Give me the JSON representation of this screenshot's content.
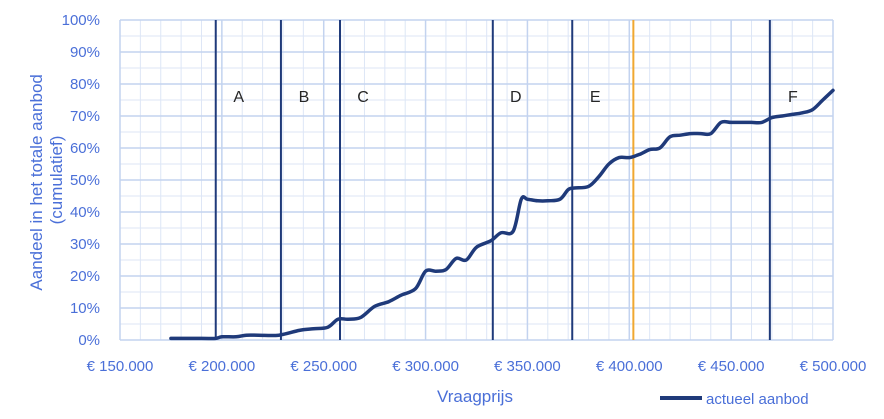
{
  "chart_data": {
    "type": "line",
    "title": "",
    "xlabel": "Vraagprijs",
    "ylabel": "Aandeel in het totale aanbod (cumulatief)",
    "ylabel_lines": [
      "Aandeel in het totale aanbod",
      "(cumulatief)"
    ],
    "xlim": [
      150000,
      500000
    ],
    "ylim": [
      0,
      100
    ],
    "x_ticks": [
      150000,
      200000,
      250000,
      300000,
      350000,
      400000,
      450000,
      500000
    ],
    "x_tick_labels": [
      "€ 150.000",
      "€ 200.000",
      "€ 250.000",
      "€ 300.000",
      "€ 350.000",
      "€ 400.000",
      "€ 450.000",
      "€ 500.000"
    ],
    "y_ticks": [
      0,
      10,
      20,
      30,
      40,
      50,
      60,
      70,
      80,
      90,
      100
    ],
    "y_tick_labels": [
      "0%",
      "10%",
      "20%",
      "30%",
      "40%",
      "50%",
      "60%",
      "70%",
      "80%",
      "90%",
      "100%"
    ],
    "grid": true,
    "legend": "bottom-right",
    "series": [
      {
        "name": "actueel aanbod",
        "color": "#1f3a7a",
        "x": [
          175000,
          190000,
          197000,
          200000,
          207000,
          212000,
          218000,
          228000,
          238000,
          245000,
          252000,
          257000,
          262000,
          268000,
          275000,
          282000,
          288000,
          295000,
          300000,
          305000,
          310000,
          315000,
          320000,
          325000,
          332000,
          337000,
          343000,
          347000,
          350000,
          355000,
          360000,
          366000,
          370000,
          373000,
          380000,
          385000,
          390000,
          395000,
          400000,
          405000,
          410000,
          415000,
          420000,
          425000,
          430000,
          435000,
          440000,
          445000,
          450000,
          455000,
          460000,
          465000,
          470000,
          475000,
          480000,
          485000,
          490000,
          495000,
          500000
        ],
        "values": [
          0.5,
          0.5,
          0.5,
          1,
          1,
          1.5,
          1.5,
          1.5,
          3,
          3.5,
          4,
          6.5,
          6.5,
          7,
          10.5,
          12,
          14,
          16,
          21.5,
          21.5,
          22,
          25.5,
          25,
          29,
          31,
          33.5,
          34,
          44,
          44,
          43.5,
          43.5,
          44,
          47,
          47.5,
          48,
          51,
          55,
          57,
          57,
          58,
          59.5,
          60,
          63.5,
          64,
          64.5,
          64.5,
          64.5,
          68,
          68,
          68,
          68,
          68,
          69.5,
          70,
          70.5,
          71,
          72,
          75,
          78
        ]
      }
    ],
    "region_lines": [
      {
        "label": "A",
        "x": 197000,
        "color": "#1f3a7a"
      },
      {
        "label": "B",
        "x": 229000,
        "color": "#1f3a7a"
      },
      {
        "label": "C",
        "x": 258000,
        "color": "#1f3a7a"
      },
      {
        "label": "D",
        "x": 333000,
        "color": "#1f3a7a"
      },
      {
        "label": "E",
        "x": 372000,
        "color": "#1f3a7a"
      },
      {
        "label": "F",
        "x": 469000,
        "color": "#1f3a7a"
      }
    ],
    "reference_line": {
      "x": 402000,
      "color": "#f0a830"
    },
    "colors": {
      "grid_major": "#c3d3ef",
      "grid_minor": "#dde6f6",
      "tick_text": "#4a6fd8"
    }
  }
}
